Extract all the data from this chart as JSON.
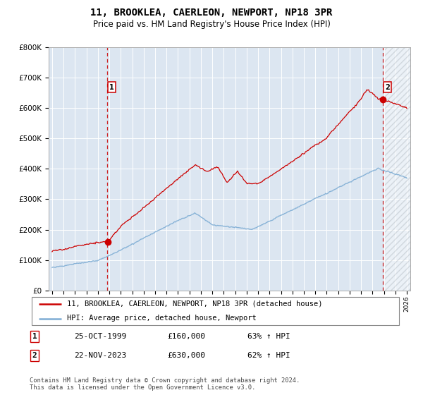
{
  "title": "11, BROOKLEA, CAERLEON, NEWPORT, NP18 3PR",
  "subtitle": "Price paid vs. HM Land Registry's House Price Index (HPI)",
  "ylim": [
    0,
    800000
  ],
  "yticks": [
    0,
    100000,
    200000,
    300000,
    400000,
    500000,
    600000,
    700000,
    800000
  ],
  "ytick_labels": [
    "£0",
    "£100K",
    "£200K",
    "£300K",
    "£400K",
    "£500K",
    "£600K",
    "£700K",
    "£800K"
  ],
  "x_start_year": 1995,
  "x_end_year": 2026,
  "hpi_color": "#7eadd4",
  "price_color": "#cc0000",
  "marker1_date": 1999.81,
  "marker1_price": 160000,
  "marker2_date": 2023.9,
  "marker2_price": 630000,
  "legend_line1": "11, BROOKLEA, CAERLEON, NEWPORT, NP18 3PR (detached house)",
  "legend_line2": "HPI: Average price, detached house, Newport",
  "table_row1_num": "1",
  "table_row1_date": "25-OCT-1999",
  "table_row1_price": "£160,000",
  "table_row1_hpi": "63% ↑ HPI",
  "table_row2_num": "2",
  "table_row2_date": "22-NOV-2023",
  "table_row2_price": "£630,000",
  "table_row2_hpi": "62% ↑ HPI",
  "footnote": "Contains HM Land Registry data © Crown copyright and database right 2024.\nThis data is licensed under the Open Government Licence v3.0.",
  "bg_color": "#dce6f1",
  "grid_color": "#ffffff",
  "dashed_line_color": "#cc0000",
  "hatch_color": "#b0b8c0"
}
